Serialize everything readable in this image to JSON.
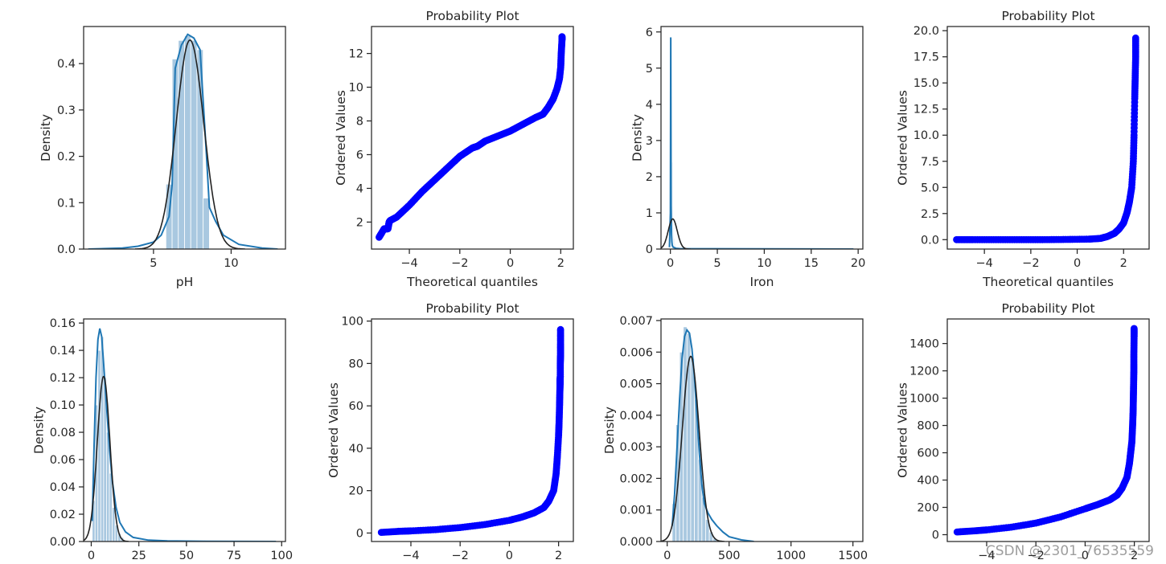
{
  "watermark": "CSDN @2301_76535559",
  "colors": {
    "hist_fill": "#a9c8e0",
    "hist_edge": "#ffffff",
    "kde": "#1f77b4",
    "fit": "#222222",
    "points": "#0000ff",
    "axes": "#262626"
  },
  "chart_data": [
    {
      "id": "ph-dist",
      "type": "area",
      "title": "",
      "xlabel": "pH",
      "ylabel": "Density",
      "xlim": [
        0.5,
        13.5
      ],
      "ylim": [
        0,
        0.48
      ],
      "xticks": [
        5,
        10
      ],
      "xtick_labels": [
        "5",
        "10"
      ],
      "yticks": [
        0,
        0.1,
        0.2,
        0.3,
        0.4
      ],
      "ytick_labels": [
        "0.0",
        "0.1",
        "0.2",
        "0.3",
        "0.4"
      ],
      "hist": {
        "edges": [
          5.8,
          6.2,
          6.6,
          7.0,
          7.4,
          7.8,
          8.2,
          8.6
        ],
        "values": [
          0.14,
          0.41,
          0.45,
          0.46,
          0.45,
          0.43,
          0.11
        ]
      },
      "kde": {
        "x": [
          0.8,
          3,
          4,
          5,
          5.5,
          6,
          6.2,
          6.4,
          6.8,
          7.2,
          7.6,
          8,
          8.4,
          8.6,
          9,
          9.5,
          10.5,
          12,
          13
        ],
        "y": [
          0,
          0.002,
          0.006,
          0.015,
          0.03,
          0.07,
          0.14,
          0.39,
          0.44,
          0.463,
          0.455,
          0.43,
          0.21,
          0.09,
          0.06,
          0.03,
          0.01,
          0.002,
          0
        ]
      },
      "fit": {
        "mean": 7.35,
        "std": 0.885
      }
    },
    {
      "id": "ph-prob",
      "type": "scatter",
      "title": "Probability Plot",
      "xlabel": "Theoretical quantiles",
      "ylabel": "Ordered Values",
      "xlim": [
        -5.5,
        2.5
      ],
      "ylim": [
        0.4,
        13.6
      ],
      "xticks": [
        -4,
        -2,
        0,
        2
      ],
      "xtick_labels": [
        "−4",
        "−2",
        "0",
        "2"
      ],
      "yticks": [
        2,
        4,
        6,
        8,
        10,
        12
      ],
      "ytick_labels": [
        "2",
        "4",
        "6",
        "8",
        "10",
        "12"
      ],
      "points": {
        "x": [
          -5.2,
          -5.0,
          -4.85,
          -4.8,
          -4.75,
          -4.5,
          -4.0,
          -3.5,
          -3.0,
          -2.5,
          -2.0,
          -1.5,
          -1.3,
          -1.0,
          -0.5,
          0,
          0.5,
          1.0,
          1.3,
          1.5,
          1.7,
          1.85,
          1.95,
          2.0,
          2.02,
          2.05,
          2.05
        ],
        "y": [
          1.1,
          1.6,
          1.6,
          2.0,
          2.1,
          2.3,
          3.0,
          3.8,
          4.5,
          5.2,
          5.9,
          6.4,
          6.5,
          6.8,
          7.1,
          7.4,
          7.8,
          8.2,
          8.4,
          8.8,
          9.3,
          9.9,
          10.5,
          11.2,
          12.0,
          12.8,
          13.0
        ]
      }
    },
    {
      "id": "iron-dist",
      "type": "area",
      "title": "",
      "xlabel": "Iron",
      "ylabel": "Density",
      "xlim": [
        -1,
        20.5
      ],
      "ylim": [
        0,
        6.15
      ],
      "xticks": [
        0,
        5,
        10,
        15,
        20
      ],
      "xtick_labels": [
        "0",
        "5",
        "10",
        "15",
        "20"
      ],
      "yticks": [
        0,
        1,
        2,
        3,
        4,
        5,
        6
      ],
      "ytick_labels": [
        "0",
        "1",
        "2",
        "3",
        "4",
        "5",
        "6"
      ],
      "hist": {
        "edges": [
          0,
          0.08,
          0.16,
          0.24,
          0.32,
          0.4,
          0.48,
          0.56,
          0.64
        ],
        "values": [
          5.2,
          5.8,
          2.4,
          2.4,
          0.6,
          0.3,
          0.15,
          0.05
        ]
      },
      "kde": {
        "x": [
          -0.1,
          0.0,
          0.04,
          0.08,
          0.12,
          0.16,
          0.2,
          0.3,
          0.6,
          1.0,
          19.5
        ],
        "y": [
          0.05,
          1.0,
          5.85,
          1.2,
          0.4,
          0.2,
          0.1,
          0.05,
          0.02,
          0.01,
          0.0
        ]
      },
      "fit": {
        "mean": 0.25,
        "std": 0.48
      }
    },
    {
      "id": "iron-prob",
      "type": "scatter",
      "title": "Probability Plot",
      "xlabel": "Theoretical quantiles",
      "ylabel": "Ordered Values",
      "xlim": [
        -5.6,
        3.1
      ],
      "ylim": [
        -0.9,
        20.4
      ],
      "xticks": [
        -4,
        -2,
        0,
        2
      ],
      "xtick_labels": [
        "−4",
        "−2",
        "0",
        "2"
      ],
      "yticks": [
        0,
        2.5,
        5,
        7.5,
        10,
        12.5,
        15,
        17.5,
        20
      ],
      "ytick_labels": [
        "0.0",
        "2.5",
        "5.0",
        "7.5",
        "10.0",
        "12.5",
        "15.0",
        "17.5",
        "20.0"
      ],
      "points": {
        "x": [
          -5.2,
          -4.5,
          -3.5,
          -2.5,
          -1.5,
          -0.5,
          0.5,
          1.0,
          1.3,
          1.6,
          1.8,
          2.0,
          2.15,
          2.25,
          2.35,
          2.42,
          2.45,
          2.48,
          2.5,
          2.52,
          2.52
        ],
        "y": [
          0,
          0.0,
          0.0,
          0.0,
          0.0,
          0.02,
          0.05,
          0.12,
          0.3,
          0.6,
          1.0,
          1.6,
          2.6,
          3.6,
          5.0,
          7.5,
          10.0,
          13.5,
          15.5,
          17.5,
          19.3
        ]
      }
    },
    {
      "id": "row2-dist-a",
      "type": "area",
      "title": "",
      "xlabel": "",
      "ylabel": "Density",
      "xlim": [
        -4,
        102
      ],
      "ylim": [
        0,
        0.163
      ],
      "xticks": [
        0,
        25,
        50,
        75,
        100
      ],
      "xtick_labels": [
        "0",
        "25",
        "50",
        "75",
        "100"
      ],
      "yticks": [
        0,
        0.02,
        0.04,
        0.06,
        0.08,
        0.1,
        0.12,
        0.14,
        0.16
      ],
      "ytick_labels": [
        "0.00",
        "0.02",
        "0.04",
        "0.06",
        "0.08",
        "0.10",
        "0.12",
        "0.14",
        "0.16"
      ],
      "hist": {
        "edges": [
          0.5,
          2,
          3.5,
          5,
          6.5,
          8,
          9.5,
          11,
          12.5,
          14,
          15.5,
          17
        ],
        "values": [
          0.03,
          0.1,
          0.14,
          0.15,
          0.12,
          0.08,
          0.05,
          0.025,
          0.012,
          0.006,
          0.003
        ]
      },
      "kde": {
        "x": [
          0.5,
          1.5,
          2.5,
          3.5,
          4.5,
          5.5,
          6.5,
          8,
          9.5,
          11,
          13,
          15,
          18,
          22,
          30,
          40,
          60,
          97
        ],
        "y": [
          0.015,
          0.07,
          0.12,
          0.148,
          0.156,
          0.15,
          0.13,
          0.1,
          0.07,
          0.045,
          0.025,
          0.014,
          0.007,
          0.003,
          0.001,
          0.0005,
          0.0002,
          0
        ]
      },
      "fit": {
        "mean": 6.5,
        "std": 3.3
      }
    },
    {
      "id": "row2-prob-a",
      "type": "scatter",
      "title": "Probability Plot",
      "xlabel": "",
      "ylabel": "Ordered Values",
      "xlim": [
        -5.6,
        2.6
      ],
      "ylim": [
        -4,
        101
      ],
      "xticks": [
        -4,
        -2,
        0,
        2
      ],
      "xtick_labels": [
        "−4",
        "−2",
        "0",
        "2"
      ],
      "yticks": [
        0,
        20,
        40,
        60,
        80,
        100
      ],
      "ytick_labels": [
        "0",
        "20",
        "40",
        "60",
        "80",
        "100"
      ],
      "points": {
        "x": [
          -5.2,
          -4.5,
          -4.0,
          -3.0,
          -2.0,
          -1.0,
          0,
          0.5,
          1.0,
          1.4,
          1.6,
          1.8,
          1.9,
          1.95,
          2.0,
          2.02,
          2.04,
          2.05,
          2.06,
          2.06,
          2.07,
          2.07,
          2.08,
          2.08,
          2.08
        ],
        "y": [
          0.3,
          0.8,
          1.0,
          1.6,
          2.6,
          4.0,
          6.0,
          7.5,
          9.5,
          12,
          15,
          20,
          28,
          36,
          46,
          52,
          60,
          66,
          70,
          72,
          74,
          80,
          84,
          89,
          96
        ]
      }
    },
    {
      "id": "row2-dist-b",
      "type": "area",
      "title": "",
      "xlabel": "",
      "ylabel": "Density",
      "xlim": [
        -50,
        1580
      ],
      "ylim": [
        0,
        0.00705
      ],
      "xticks": [
        0,
        500,
        1000,
        1500
      ],
      "xtick_labels": [
        "0",
        "500",
        "1000",
        "1500"
      ],
      "yticks": [
        0,
        0.001,
        0.002,
        0.003,
        0.004,
        0.005,
        0.006,
        0.007
      ],
      "ytick_labels": [
        "0.000",
        "0.001",
        "0.002",
        "0.003",
        "0.004",
        "0.005",
        "0.006",
        "0.007"
      ],
      "hist": {
        "edges": [
          40,
          70,
          100,
          130,
          160,
          190,
          220,
          250,
          280,
          310,
          340,
          370,
          400
        ],
        "values": [
          0.0012,
          0.0037,
          0.006,
          0.0068,
          0.0066,
          0.0058,
          0.0045,
          0.0026,
          0.0014,
          0.0007,
          0.0003,
          0.0001
        ]
      },
      "kde": {
        "x": [
          40,
          60,
          80,
          100,
          120,
          140,
          160,
          180,
          200,
          220,
          240,
          260,
          280,
          300,
          330,
          360,
          400,
          450,
          500,
          600,
          700
        ],
        "y": [
          0.0005,
          0.0015,
          0.003,
          0.0045,
          0.0058,
          0.0065,
          0.0067,
          0.0066,
          0.0061,
          0.0052,
          0.004,
          0.0028,
          0.0018,
          0.0012,
          0.0009,
          0.0007,
          0.0005,
          0.0003,
          0.00015,
          5e-05,
          0
        ]
      },
      "fit": {
        "mean": 190,
        "std": 68
      }
    },
    {
      "id": "row2-prob-b",
      "type": "scatter",
      "title": "Probability Plot",
      "xlabel": "",
      "ylabel": "Ordered Values",
      "xlim": [
        -5.6,
        2.6
      ],
      "ylim": [
        -50,
        1580
      ],
      "xticks": [
        -4,
        -2,
        0,
        2
      ],
      "xtick_labels": [
        "−4",
        "−2",
        "0",
        "2"
      ],
      "yticks": [
        0,
        200,
        400,
        600,
        800,
        1000,
        1200,
        1400
      ],
      "ytick_labels": [
        "0",
        "200",
        "400",
        "600",
        "800",
        "1000",
        "1200",
        "1400"
      ],
      "points": {
        "x": [
          -5.2,
          -4.5,
          -4.0,
          -3.0,
          -2.0,
          -1.0,
          0,
          0.5,
          1.0,
          1.3,
          1.5,
          1.7,
          1.8,
          1.85,
          1.9,
          1.93,
          1.95,
          1.96,
          1.97,
          1.98,
          1.98,
          1.99,
          1.99
        ],
        "y": [
          20,
          28,
          35,
          55,
          85,
          130,
          190,
          220,
          255,
          290,
          340,
          420,
          520,
          600,
          680,
          800,
          900,
          1000,
          1100,
          1200,
          1320,
          1450,
          1510
        ]
      }
    }
  ]
}
